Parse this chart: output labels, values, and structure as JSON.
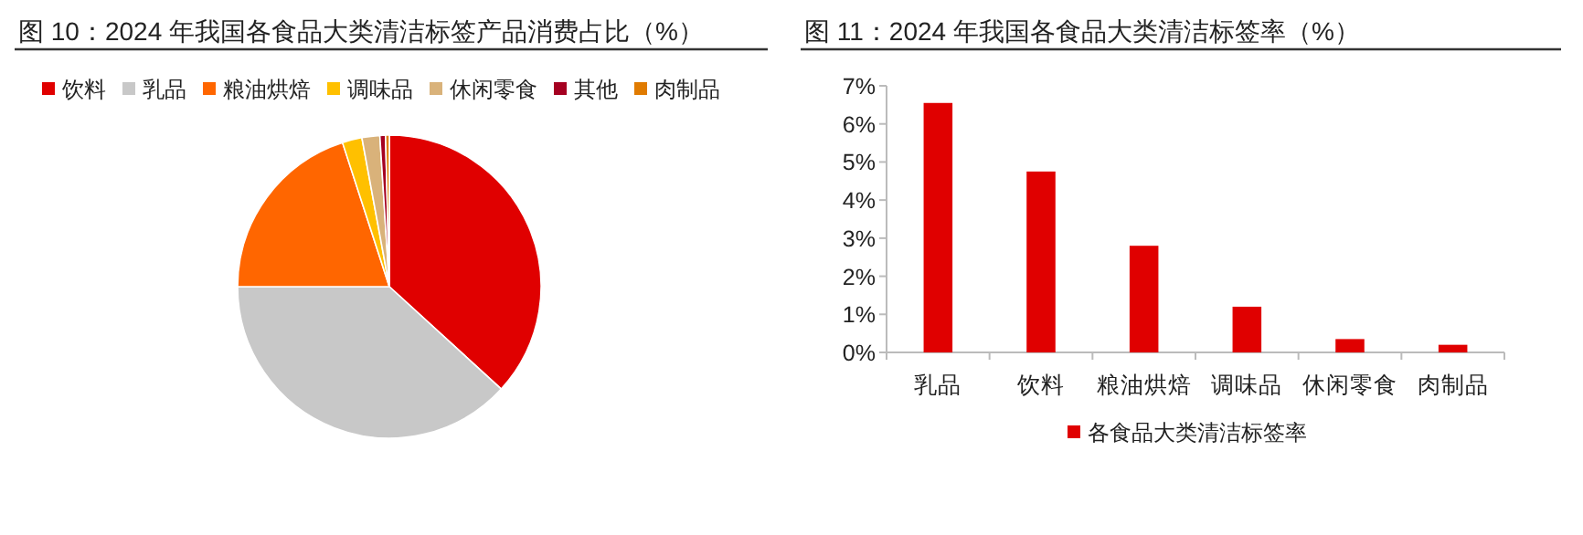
{
  "chart_data": [
    {
      "type": "pie",
      "title": "图 10：2024 年我国各食品大类清洁标签产品消费占比（%）",
      "categories": [
        "饮料",
        "乳品",
        "粮油烘焙",
        "调味品",
        "休闲零食",
        "其他",
        "肉制品"
      ],
      "values": [
        36.8,
        38.2,
        20.0,
        2.1,
        1.9,
        0.6,
        0.4
      ],
      "colors": [
        "#e00000",
        "#c8c8c8",
        "#ff6600",
        "#ffc000",
        "#d9b27a",
        "#a50021",
        "#e07b00"
      ],
      "legend": "top"
    },
    {
      "type": "bar",
      "title": "图 11：2024 年我国各食品大类清洁标签率（%）",
      "categories": [
        "乳品",
        "饮料",
        "粮油烘焙",
        "调味品",
        "休闲零食",
        "肉制品"
      ],
      "series": [
        {
          "name": "各食品大类清洁标签率",
          "color": "#e00000",
          "values": [
            6.55,
            4.75,
            2.8,
            1.2,
            0.35,
            0.2
          ]
        }
      ],
      "ylim": [
        0,
        7
      ],
      "yticks": [
        {
          "value": 0,
          "label": "0%"
        },
        {
          "value": 1,
          "label": "1%"
        },
        {
          "value": 2,
          "label": "2%"
        },
        {
          "value": 3,
          "label": "3%"
        },
        {
          "value": 4,
          "label": "4%"
        },
        {
          "value": 5,
          "label": "5%"
        },
        {
          "value": 6,
          "label": "6%"
        },
        {
          "value": 7,
          "label": "7%"
        }
      ],
      "legend": "bottom"
    }
  ]
}
